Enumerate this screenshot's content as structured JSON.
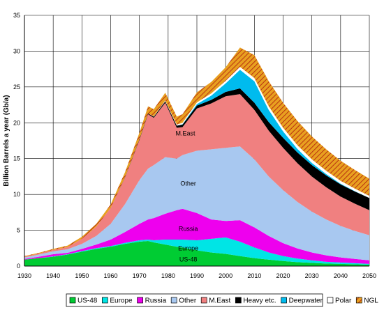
{
  "chart_data": {
    "type": "area",
    "stacked": true,
    "title": "",
    "xlabel": "",
    "ylabel": "Billion Barrels a year (Gb/a)",
    "xlim": [
      1930,
      2050
    ],
    "ylim": [
      0,
      35
    ],
    "xticks": [
      1930,
      1940,
      1950,
      1960,
      1970,
      1980,
      1990,
      2000,
      2010,
      2020,
      2030,
      2040,
      2050
    ],
    "yticks": [
      0,
      5,
      10,
      15,
      20,
      25,
      30,
      35
    ],
    "grid": true,
    "legend_position": "bottom",
    "x": [
      1930,
      1935,
      1940,
      1945,
      1950,
      1955,
      1960,
      1965,
      1970,
      1973,
      1975,
      1979,
      1983,
      1985,
      1990,
      1995,
      2000,
      2005,
      2010,
      2015,
      2020,
      2025,
      2030,
      2035,
      2040,
      2045,
      2050
    ],
    "series": [
      {
        "name": "US-48",
        "color": "#00cc33",
        "values": [
          0.9,
          1.1,
          1.3,
          1.6,
          2.0,
          2.4,
          2.7,
          3.1,
          3.4,
          3.5,
          3.3,
          3.0,
          2.7,
          2.6,
          2.2,
          1.9,
          1.7,
          1.4,
          1.1,
          0.9,
          0.7,
          0.55,
          0.45,
          0.35,
          0.3,
          0.25,
          0.2
        ]
      },
      {
        "name": "Europe",
        "color": "#00e5e5",
        "values": [
          0.0,
          0.0,
          0.05,
          0.05,
          0.1,
          0.1,
          0.1,
          0.15,
          0.2,
          0.2,
          0.3,
          0.7,
          1.0,
          1.1,
          1.4,
          1.9,
          2.3,
          2.0,
          1.5,
          1.0,
          0.7,
          0.5,
          0.35,
          0.25,
          0.2,
          0.15,
          0.1
        ]
      },
      {
        "name": "Russia",
        "color": "#ee00ee",
        "values": [
          0.1,
          0.2,
          0.3,
          0.2,
          0.3,
          0.5,
          0.9,
          1.5,
          2.3,
          2.8,
          3.1,
          3.6,
          4.1,
          4.3,
          3.8,
          2.7,
          2.3,
          3.0,
          2.8,
          2.3,
          1.8,
          1.4,
          1.1,
          0.9,
          0.7,
          0.6,
          0.5
        ]
      },
      {
        "name": "Other",
        "color": "#a8c8f0",
        "values": [
          0.2,
          0.3,
          0.4,
          0.5,
          0.7,
          1.2,
          2.2,
          3.9,
          6.1,
          7.1,
          7.4,
          7.9,
          7.2,
          7.5,
          8.7,
          9.8,
          10.2,
          10.3,
          9.5,
          8.3,
          7.4,
          6.5,
          5.7,
          5.0,
          4.4,
          3.9,
          3.5
        ]
      },
      {
        "name": "M.East",
        "color": "#f08080",
        "values": [
          0.1,
          0.15,
          0.2,
          0.3,
          0.7,
          1.3,
          2.2,
          3.7,
          5.6,
          7.6,
          6.6,
          7.6,
          4.3,
          3.9,
          5.9,
          6.4,
          7.2,
          7.3,
          6.9,
          6.4,
          5.9,
          5.4,
          4.9,
          4.5,
          4.1,
          3.8,
          3.5
        ]
      },
      {
        "name": "Heavy etc.",
        "color": "#000000",
        "values": [
          0.0,
          0.0,
          0.0,
          0.0,
          0.0,
          0.0,
          0.0,
          0.05,
          0.1,
          0.1,
          0.15,
          0.2,
          0.3,
          0.35,
          0.4,
          0.5,
          0.6,
          0.8,
          1.0,
          1.2,
          1.4,
          1.5,
          1.6,
          1.65,
          1.7,
          1.7,
          1.7
        ]
      },
      {
        "name": "Deepwater",
        "color": "#00bbee",
        "values": [
          0.0,
          0.0,
          0.0,
          0.0,
          0.0,
          0.0,
          0.0,
          0.0,
          0.0,
          0.0,
          0.0,
          0.0,
          0.0,
          0.05,
          0.2,
          0.6,
          1.2,
          2.6,
          3.0,
          1.7,
          0.9,
          0.5,
          0.3,
          0.2,
          0.1,
          0.05,
          0.0
        ]
      },
      {
        "name": "Polar",
        "color": "#ffffff",
        "values": [
          0.0,
          0.0,
          0.0,
          0.0,
          0.0,
          0.0,
          0.0,
          0.0,
          0.0,
          0.0,
          0.05,
          0.1,
          0.15,
          0.2,
          0.25,
          0.3,
          0.35,
          0.4,
          0.45,
          0.5,
          0.5,
          0.5,
          0.5,
          0.45,
          0.4,
          0.35,
          0.3
        ]
      },
      {
        "name": "NGL",
        "color": "#e8a020",
        "hatch": "#b83010",
        "values": [
          0.1,
          0.1,
          0.15,
          0.2,
          0.3,
          0.4,
          0.5,
          0.7,
          0.9,
          1.0,
          1.0,
          1.1,
          1.1,
          1.2,
          1.4,
          1.6,
          1.9,
          2.7,
          3.2,
          3.5,
          3.5,
          3.4,
          3.2,
          3.0,
          2.8,
          2.6,
          2.4
        ]
      }
    ],
    "annotations": [
      {
        "text": "M.East",
        "x": 1986,
        "y": 18.5
      },
      {
        "text": "Other",
        "x": 1987,
        "y": 11.5
      },
      {
        "text": "Russia",
        "x": 1987,
        "y": 5.2
      },
      {
        "text": "Europe",
        "x": 1987,
        "y": 2.5
      },
      {
        "text": "US-48",
        "x": 1987,
        "y": 0.9
      }
    ]
  }
}
